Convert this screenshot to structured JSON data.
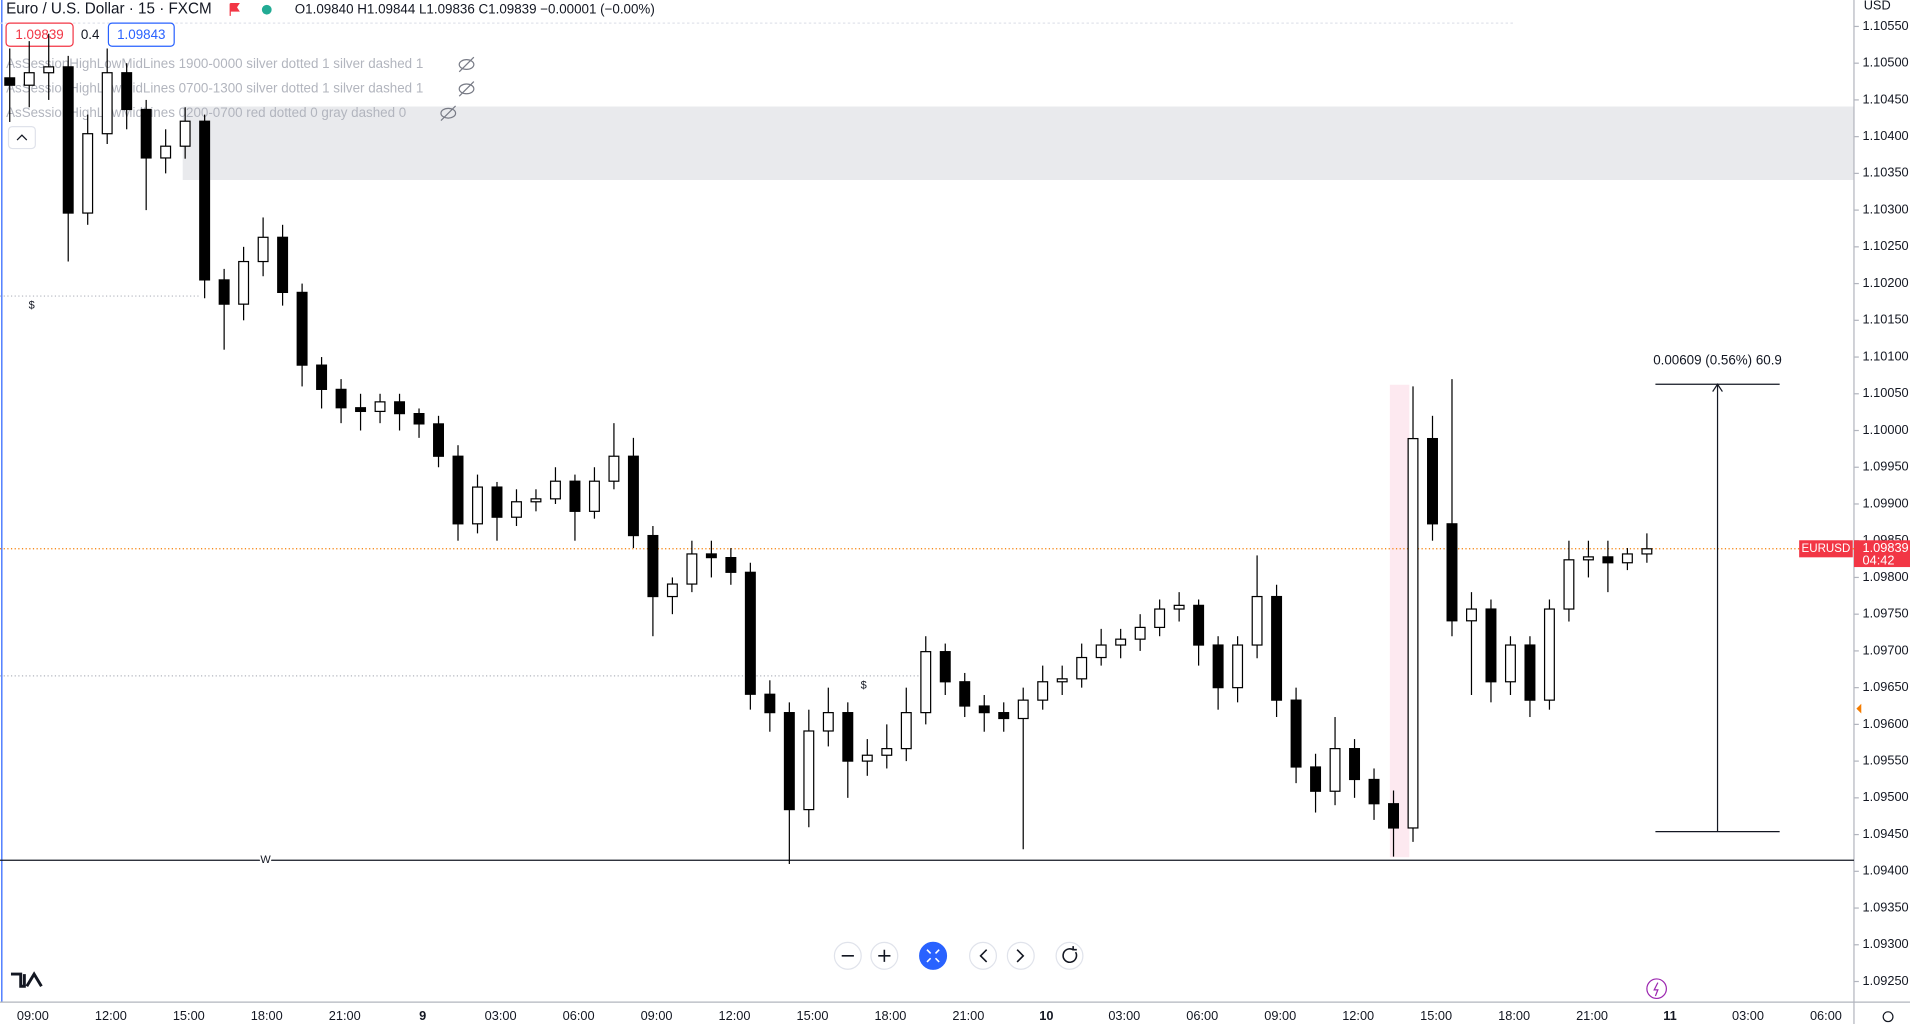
{
  "header": {
    "symbol": "Euro / U.S. Dollar · 15 · FXCM",
    "ohlc": "O1.09840 H1.09844 L1.09836 C1.09839 −0.00001 (−0.00%)",
    "bid": "1.09839",
    "spread": "0.4",
    "ask": "1.09843"
  },
  "indicators": [
    "AsSessionHighLowMidLines 1900-0000 silver dotted 1 silver dashed 1",
    "AsSessionHighLowMidLines 0700-1300 silver dotted 1 silver dashed 1",
    "AsSessionHighLowMidLines 0200-0700 red dotted 0 gray dashed 0"
  ],
  "chart_data": {
    "type": "candlestick",
    "currency": "USD",
    "ylim": [
      1.09222,
      1.10586
    ],
    "yticks": [
      {
        "value": 1.1055,
        "label": "1.10550"
      },
      {
        "value": 1.105,
        "label": "1.10500"
      },
      {
        "value": 1.1045,
        "label": "1.10450"
      },
      {
        "value": 1.104,
        "label": "1.10400"
      },
      {
        "value": 1.1035,
        "label": "1.10350"
      },
      {
        "value": 1.103,
        "label": "1.10300"
      },
      {
        "value": 1.1025,
        "label": "1.10250"
      },
      {
        "value": 1.102,
        "label": "1.10200"
      },
      {
        "value": 1.1015,
        "label": "1.10150"
      },
      {
        "value": 1.101,
        "label": "1.10100"
      },
      {
        "value": 1.1005,
        "label": "1.10050"
      },
      {
        "value": 1.1,
        "label": "1.10000"
      },
      {
        "value": 1.0995,
        "label": "1.09950"
      },
      {
        "value": 1.099,
        "label": "1.09900"
      },
      {
        "value": 1.0985,
        "label": "1.09850"
      },
      {
        "value": 1.098,
        "label": "1.09800"
      },
      {
        "value": 1.0975,
        "label": "1.09750"
      },
      {
        "value": 1.097,
        "label": "1.09700"
      },
      {
        "value": 1.0965,
        "label": "1.09650"
      },
      {
        "value": 1.096,
        "label": "1.09600"
      },
      {
        "value": 1.0955,
        "label": "1.09550"
      },
      {
        "value": 1.095,
        "label": "1.09500"
      },
      {
        "value": 1.0945,
        "label": "1.09450"
      },
      {
        "value": 1.094,
        "label": "1.09400"
      },
      {
        "value": 1.0935,
        "label": "1.09350"
      },
      {
        "value": 1.093,
        "label": "1.09300"
      },
      {
        "value": 1.0925,
        "label": "1.09250"
      }
    ],
    "time_labels": [
      "09:00",
      "12:00",
      "15:00",
      "18:00",
      "21:00",
      "9",
      "03:00",
      "06:00",
      "09:00",
      "12:00",
      "15:00",
      "18:00",
      "21:00",
      "10",
      "03:00",
      "06:00",
      "09:00",
      "12:00",
      "15:00",
      "18:00",
      "21:00",
      "11",
      "03:00",
      "06:00"
    ],
    "candles": [
      [
        1.1048,
        1.1052,
        1.1042,
        1.1047
      ],
      [
        1.1047,
        1.1053,
        1.1044,
        1.10487
      ],
      [
        1.10487,
        1.1054,
        1.1045,
        1.10495
      ],
      [
        1.10495,
        1.1051,
        1.1023,
        1.10296
      ],
      [
        1.10296,
        1.1043,
        1.1028,
        1.10404
      ],
      [
        1.10404,
        1.1052,
        1.1039,
        1.10487
      ],
      [
        1.10487,
        1.105,
        1.1041,
        1.10437
      ],
      [
        1.10437,
        1.1045,
        1.103,
        1.10371
      ],
      [
        1.10371,
        1.1041,
        1.1035,
        1.10387
      ],
      [
        1.10387,
        1.1044,
        1.1037,
        1.10421
      ],
      [
        1.10421,
        1.1043,
        1.1018,
        1.10205
      ],
      [
        1.10205,
        1.1022,
        1.1011,
        1.10172
      ],
      [
        1.10172,
        1.1025,
        1.1015,
        1.1023
      ],
      [
        1.1023,
        1.1029,
        1.1021,
        1.10263
      ],
      [
        1.10263,
        1.1028,
        1.1017,
        1.10188
      ],
      [
        1.10188,
        1.102,
        1.1006,
        1.10089
      ],
      [
        1.10089,
        1.101,
        1.1003,
        1.10056
      ],
      [
        1.10056,
        1.1007,
        1.1001,
        1.10031
      ],
      [
        1.10031,
        1.1005,
        1.1,
        1.10026
      ],
      [
        1.10026,
        1.1005,
        1.1001,
        1.10039
      ],
      [
        1.10039,
        1.1005,
        1.1,
        1.10023
      ],
      [
        1.10023,
        1.1003,
        1.0999,
        1.10009
      ],
      [
        1.10009,
        1.1002,
        1.0995,
        1.09965
      ],
      [
        1.09965,
        1.0998,
        1.0985,
        1.09873
      ],
      [
        1.09873,
        1.0994,
        1.0986,
        1.09923
      ],
      [
        1.09923,
        1.0993,
        1.0985,
        1.09882
      ],
      [
        1.09882,
        1.0992,
        1.0987,
        1.09903
      ],
      [
        1.09903,
        1.0992,
        1.0989,
        1.09907
      ],
      [
        1.09907,
        1.0995,
        1.099,
        1.09931
      ],
      [
        1.09931,
        1.0994,
        1.0985,
        1.0989
      ],
      [
        1.0989,
        1.0995,
        1.0988,
        1.09931
      ],
      [
        1.09931,
        1.1001,
        1.0992,
        1.09965
      ],
      [
        1.09965,
        1.0999,
        1.0984,
        1.09857
      ],
      [
        1.09857,
        1.0987,
        1.0972,
        1.09774
      ],
      [
        1.09774,
        1.098,
        1.0975,
        1.09791
      ],
      [
        1.09791,
        1.0985,
        1.0978,
        1.09832
      ],
      [
        1.09832,
        1.0985,
        1.098,
        1.09827
      ],
      [
        1.09827,
        1.0984,
        1.0979,
        1.09807
      ],
      [
        1.09807,
        1.0982,
        1.0962,
        1.09641
      ],
      [
        1.09641,
        1.0966,
        1.0959,
        1.09616
      ],
      [
        1.09616,
        1.0963,
        1.0941,
        1.09484
      ],
      [
        1.09484,
        1.0962,
        1.0946,
        1.09591
      ],
      [
        1.09591,
        1.0965,
        1.0957,
        1.09616
      ],
      [
        1.09616,
        1.0963,
        1.095,
        1.0955
      ],
      [
        1.0955,
        1.0958,
        1.0953,
        1.09558
      ],
      [
        1.09558,
        1.096,
        1.0954,
        1.09567
      ],
      [
        1.09567,
        1.0965,
        1.0955,
        1.09616
      ],
      [
        1.09616,
        1.0972,
        1.096,
        1.09699
      ],
      [
        1.09699,
        1.0971,
        1.0964,
        1.09658
      ],
      [
        1.09658,
        1.0967,
        1.0961,
        1.09625
      ],
      [
        1.09625,
        1.0964,
        1.0959,
        1.09616
      ],
      [
        1.09616,
        1.0963,
        1.0959,
        1.09608
      ],
      [
        1.09608,
        1.0965,
        1.0943,
        1.09633
      ],
      [
        1.09633,
        1.0968,
        1.0962,
        1.09658
      ],
      [
        1.09658,
        1.0968,
        1.0964,
        1.09662
      ],
      [
        1.09662,
        1.0971,
        1.0965,
        1.09691
      ],
      [
        1.09691,
        1.0973,
        1.0968,
        1.09708
      ],
      [
        1.09708,
        1.0973,
        1.0969,
        1.09716
      ],
      [
        1.09716,
        1.0975,
        1.097,
        1.09732
      ],
      [
        1.09732,
        1.0977,
        1.0972,
        1.09757
      ],
      [
        1.09757,
        1.0978,
        1.0974,
        1.09762
      ],
      [
        1.09762,
        1.0977,
        1.0968,
        1.09708
      ],
      [
        1.09708,
        1.0972,
        1.0962,
        1.0965
      ],
      [
        1.0965,
        1.0972,
        1.0963,
        1.09708
      ],
      [
        1.09708,
        1.0983,
        1.0969,
        1.09774
      ],
      [
        1.09774,
        1.0979,
        1.0961,
        1.09633
      ],
      [
        1.09633,
        1.0965,
        1.0952,
        1.09542
      ],
      [
        1.09542,
        1.0956,
        1.0948,
        1.09509
      ],
      [
        1.09509,
        1.0961,
        1.0949,
        1.09567
      ],
      [
        1.09567,
        1.0958,
        1.095,
        1.09525
      ],
      [
        1.09525,
        1.0954,
        1.0947,
        1.09492
      ],
      [
        1.09492,
        1.0951,
        1.0942,
        1.09459
      ],
      [
        1.09459,
        1.1006,
        1.0944,
        1.09989
      ],
      [
        1.09989,
        1.1002,
        1.0985,
        1.09873
      ],
      [
        1.09873,
        1.1007,
        1.0972,
        1.09741
      ],
      [
        1.09741,
        1.0978,
        1.0964,
        1.09757
      ],
      [
        1.09757,
        1.0977,
        1.0963,
        1.09658
      ],
      [
        1.09658,
        1.0972,
        1.0964,
        1.09708
      ],
      [
        1.09708,
        1.0972,
        1.0961,
        1.09633
      ],
      [
        1.09633,
        1.0977,
        1.0962,
        1.09757
      ],
      [
        1.09757,
        1.0985,
        1.0974,
        1.09824
      ],
      [
        1.09824,
        1.0985,
        1.098,
        1.09828
      ],
      [
        1.09828,
        1.0985,
        1.0978,
        1.0982
      ],
      [
        1.0982,
        1.0984,
        1.0981,
        1.09832
      ],
      [
        1.09832,
        1.0986,
        1.0982,
        1.09839
      ]
    ],
    "up_color": "#ffffff",
    "down_color": "#000000",
    "w_line": 1.09415,
    "w_label": "W",
    "dotted_lines": [
      1.10183,
      1.09666
    ],
    "dollar_labels": [
      "$",
      "$"
    ],
    "zone": [
      1.10441,
      1.10341
    ],
    "measure": {
      "from": 1.09454,
      "to": 1.10063,
      "label": "0.00609 (0.56%) 60.9"
    },
    "last_price": 1.09839,
    "last_label": "1.09839",
    "ticker": "EURUSD",
    "countdown": "04:42"
  }
}
